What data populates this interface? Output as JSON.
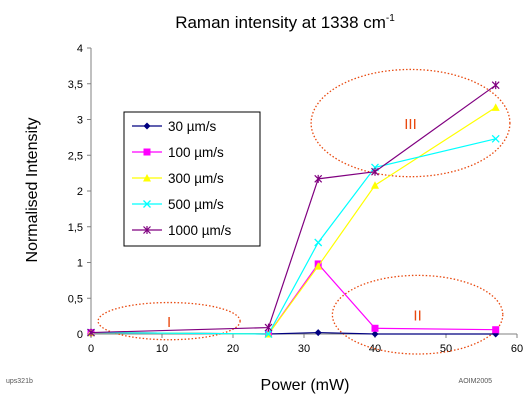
{
  "chart_data": {
    "type": "line",
    "title": "Raman intensity at 1338 cm",
    "title_superscript": "-1",
    "xlabel": "Power (mW)",
    "ylabel": "Normalised Intensity",
    "xlim": [
      0,
      60
    ],
    "ylim": [
      0,
      4
    ],
    "x_ticks": [
      "0",
      "10",
      "20",
      "30",
      "40",
      "50",
      "60"
    ],
    "y_ticks": [
      "0",
      "0,5",
      "1",
      "1,5",
      "2",
      "2,5",
      "3",
      "3,5",
      "4"
    ],
    "grid": false,
    "legend_position": "left",
    "series": [
      {
        "name": "30 µm/s",
        "color": "#000080",
        "marker": "diamond",
        "x": [
          0,
          25,
          32,
          40,
          57
        ],
        "y": [
          0.02,
          0.0,
          0.02,
          0.0,
          0.0
        ]
      },
      {
        "name": "100 µm/s",
        "color": "#ff00ff",
        "marker": "square",
        "x": [
          0,
          25,
          32,
          40,
          57
        ],
        "y": [
          0.02,
          0.0,
          0.98,
          0.08,
          0.06
        ]
      },
      {
        "name": "300 µm/s",
        "color": "#ffff00",
        "marker": "triangle",
        "x": [
          0,
          25,
          32,
          40,
          57
        ],
        "y": [
          0.02,
          0.0,
          0.95,
          2.08,
          3.17
        ]
      },
      {
        "name": "500 µm/s",
        "color": "#00ffff",
        "marker": "x",
        "x": [
          0,
          25,
          32,
          40,
          57
        ],
        "y": [
          0.02,
          0.0,
          1.28,
          2.33,
          2.73
        ]
      },
      {
        "name": "1000 µm/s",
        "color": "#800080",
        "marker": "star",
        "x": [
          0,
          25,
          32,
          40,
          57
        ],
        "y": [
          0.02,
          0.09,
          2.17,
          2.27,
          3.48
        ]
      }
    ],
    "annotations": [
      {
        "label": "I",
        "x": 11,
        "y": 0.18,
        "rx_data": 10,
        "ry_data": 0.26
      },
      {
        "label": "II",
        "x": 46,
        "y": 0.27,
        "rx_data": 12,
        "ry_data": 0.55
      },
      {
        "label": "III",
        "x": 45,
        "y": 2.95,
        "rx_data": 14,
        "ry_data": 0.75
      }
    ]
  },
  "footer": {
    "left": "ups321b",
    "right": "AOIM2005"
  },
  "colors": {
    "axis": "#808080",
    "annotation": "#e8490f",
    "plot_bg": "#ffffff"
  }
}
